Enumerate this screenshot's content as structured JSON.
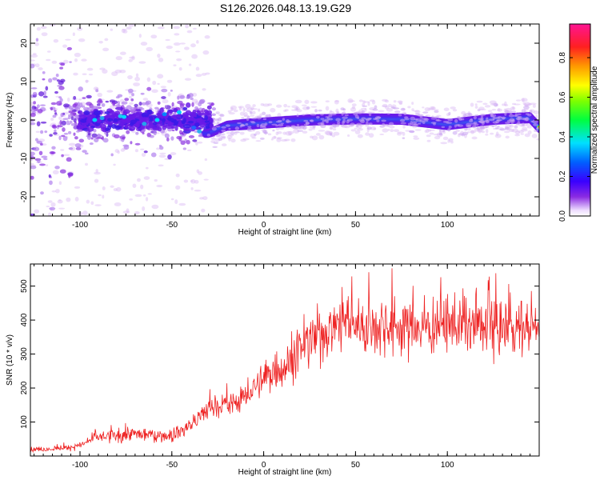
{
  "title": "S126.2026.048.13.19.G29",
  "colors": {
    "snr_line": "#ee2222",
    "spec_core": "#cc2222",
    "axis": "#000000"
  },
  "chart_data": [
    {
      "type": "heatmap",
      "name": "spectrogram",
      "xlabel": "Height of straight line (km)",
      "ylabel": "Frequency (Hz)",
      "xlim": [
        -127,
        150
      ],
      "ylim": [
        -25,
        25
      ],
      "xticks": [
        -100,
        -50,
        0,
        50,
        100
      ],
      "yticks": [
        -20,
        -10,
        0,
        10,
        20
      ],
      "colorbar": {
        "label": "Normalized spectral amplitude",
        "range": [
          0.0,
          0.97
        ],
        "ticks": [
          0.0,
          0.2,
          0.4,
          0.6,
          0.8
        ],
        "tick_labels": [
          "0.0",
          "0.2",
          "0.4",
          "0.6",
          "0.8"
        ],
        "colormap": "rainbow (white-violet-blue-cyan-green-yellow-orange-red-magenta)"
      },
      "signal_band": {
        "description": "Bright ridge near 0 Hz from about -30 km to 150 km; scattered weak noise at low heights",
        "center_freq_hz": [
          [
            -30,
            -3.5
          ],
          [
            -20,
            -1.5
          ],
          [
            0,
            -0.8
          ],
          [
            25,
            0.0
          ],
          [
            50,
            0.3
          ],
          [
            75,
            0.2
          ],
          [
            100,
            -1.2
          ],
          [
            125,
            0.2
          ],
          [
            145,
            0.6
          ],
          [
            150,
            -2.0
          ]
        ],
        "peak_amplitude": 0.97
      }
    },
    {
      "type": "line",
      "name": "snr",
      "xlabel": "Height of straight line (km)",
      "ylabel": "SNR (10 * v/v)",
      "xlim": [
        -127,
        150
      ],
      "ylim": [
        0,
        565
      ],
      "xticks": [
        -100,
        -50,
        0,
        50,
        100
      ],
      "yticks": [
        100,
        200,
        300,
        400,
        500
      ],
      "series": [
        {
          "name": "SNR",
          "x": [
            -127,
            -110,
            -100,
            -95,
            -90,
            -80,
            -70,
            -60,
            -50,
            -45,
            -40,
            -35,
            -30,
            -25,
            -20,
            -15,
            -10,
            -5,
            0,
            5,
            10,
            15,
            20,
            25,
            30,
            35,
            40,
            50,
            60,
            70,
            80,
            90,
            100,
            110,
            120,
            130,
            140,
            150
          ],
          "y": [
            20,
            22,
            30,
            45,
            55,
            60,
            65,
            62,
            60,
            75,
            90,
            110,
            140,
            150,
            150,
            160,
            175,
            200,
            225,
            250,
            260,
            285,
            315,
            330,
            355,
            375,
            390,
            385,
            385,
            385,
            380,
            380,
            385,
            385,
            380,
            380,
            380,
            370
          ]
        }
      ]
    }
  ]
}
